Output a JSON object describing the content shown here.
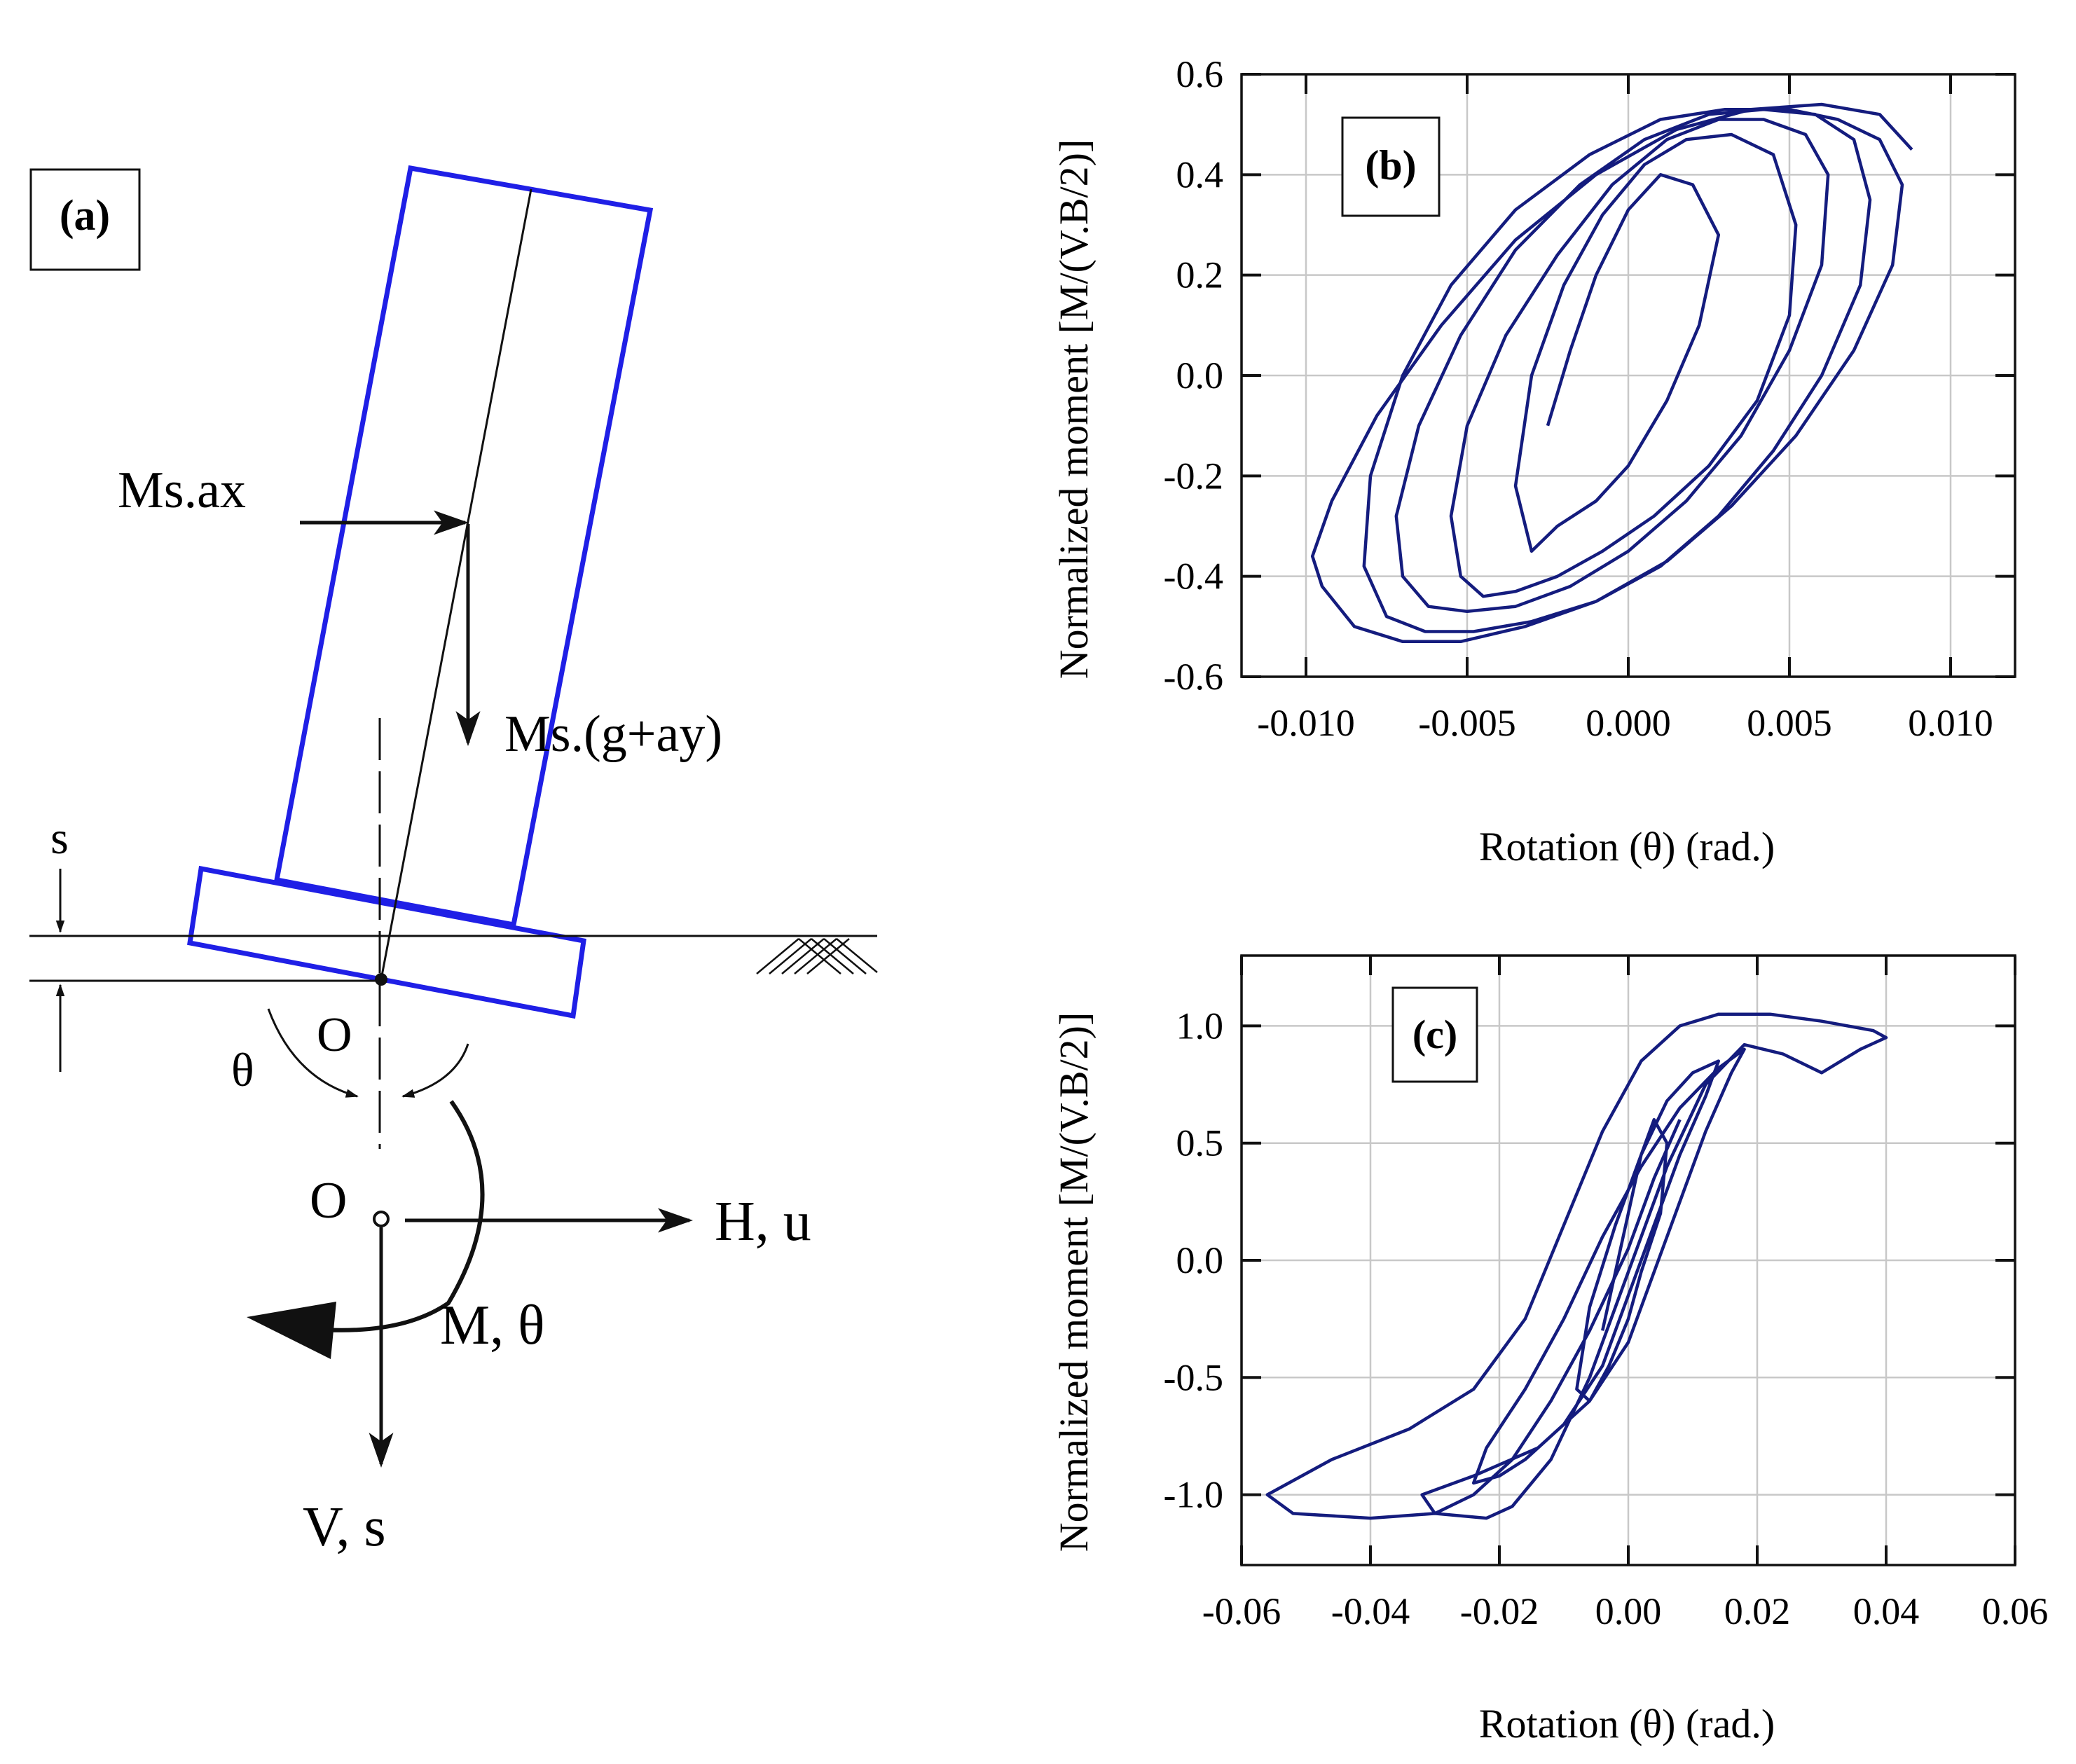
{
  "colors": {
    "blue_outline": "#1f1fe6",
    "curve": "#141c7e",
    "grid": "#c8c8c8",
    "ink": "#111111"
  },
  "panel_a": {
    "label": "(a)",
    "force_horizontal": "Ms.ax",
    "force_vertical": "Ms.(g+ay)",
    "settlement_label": "s",
    "rotation_label": "θ",
    "point_upper": "O",
    "point_lower": "O",
    "horizontal_load": "H, u",
    "moment_label": "M, θ",
    "vertical_load": "V, s"
  },
  "chart_data": [
    {
      "type": "line",
      "label": "(b)",
      "xlabel": "Rotation (θ) (rad.)",
      "ylabel": "Normalized moment [M/(V.B/2)]",
      "xlim": [
        -0.012,
        0.012
      ],
      "ylim": [
        -0.6,
        0.6
      ],
      "xticks": [
        -0.01,
        -0.005,
        0.0,
        0.005,
        0.01
      ],
      "xtick_labels": [
        "-0.010",
        "-0.005",
        "0.000",
        "0.005",
        "0.010"
      ],
      "yticks": [
        -0.6,
        -0.4,
        -0.2,
        0.0,
        0.2,
        0.4,
        0.6
      ],
      "ytick_labels": [
        "-0.6",
        "-0.4",
        "-0.2",
        "0.0",
        "0.2",
        "0.4",
        "0.6"
      ],
      "grid": true,
      "series": [
        {
          "name": "hysteresis",
          "x": [
            -0.0025,
            -0.0018,
            -0.001,
            0.0,
            0.001,
            0.002,
            0.0028,
            0.0022,
            0.0012,
            0.0,
            -0.001,
            -0.0022,
            -0.003,
            -0.0035,
            -0.003,
            -0.002,
            -0.0008,
            0.0005,
            0.0018,
            0.0032,
            0.0045,
            0.0052,
            0.005,
            0.004,
            0.0025,
            0.0008,
            -0.0008,
            -0.0022,
            -0.0035,
            -0.0045,
            -0.0052,
            -0.0055,
            -0.005,
            -0.0038,
            -0.0022,
            -0.0005,
            0.0012,
            0.0028,
            0.0042,
            0.0055,
            0.0062,
            0.006,
            0.005,
            0.0035,
            0.0018,
            0.0,
            -0.0018,
            -0.0035,
            -0.005,
            -0.0062,
            -0.007,
            -0.0072,
            -0.0065,
            -0.0052,
            -0.0035,
            -0.0015,
            0.0005,
            0.0025,
            0.0042,
            0.0058,
            0.007,
            0.0075,
            0.0072,
            0.006,
            0.0045,
            0.0028,
            0.001,
            -0.001,
            -0.003,
            -0.0048,
            -0.0063,
            -0.0075,
            -0.0082,
            -0.008,
            -0.007,
            -0.0055,
            -0.0035,
            -0.0012,
            0.001,
            0.003,
            0.005,
            0.0065,
            0.0078,
            0.0085,
            0.0082,
            0.007,
            0.0052,
            0.0032,
            0.0012,
            -0.001,
            -0.0032,
            -0.0052,
            -0.007,
            -0.0085,
            -0.0095,
            -0.0098,
            -0.0092,
            -0.0078,
            -0.0058,
            -0.0035,
            -0.001,
            0.0015,
            0.0038,
            0.006,
            0.0078,
            0.0088
          ],
          "y": [
            -0.1,
            0.05,
            0.2,
            0.33,
            0.4,
            0.38,
            0.28,
            0.1,
            -0.05,
            -0.18,
            -0.25,
            -0.3,
            -0.35,
            -0.22,
            0.0,
            0.18,
            0.32,
            0.42,
            0.47,
            0.48,
            0.44,
            0.3,
            0.12,
            -0.05,
            -0.18,
            -0.28,
            -0.35,
            -0.4,
            -0.43,
            -0.44,
            -0.4,
            -0.28,
            -0.1,
            0.08,
            0.24,
            0.38,
            0.47,
            0.51,
            0.51,
            0.48,
            0.4,
            0.22,
            0.05,
            -0.12,
            -0.25,
            -0.35,
            -0.42,
            -0.46,
            -0.47,
            -0.46,
            -0.4,
            -0.28,
            -0.1,
            0.08,
            0.25,
            0.38,
            0.47,
            0.52,
            0.53,
            0.52,
            0.47,
            0.35,
            0.18,
            0.0,
            -0.15,
            -0.28,
            -0.38,
            -0.45,
            -0.49,
            -0.51,
            -0.51,
            -0.48,
            -0.38,
            -0.2,
            0.0,
            0.18,
            0.33,
            0.44,
            0.51,
            0.53,
            0.53,
            0.51,
            0.47,
            0.38,
            0.22,
            0.05,
            -0.12,
            -0.26,
            -0.37,
            -0.45,
            -0.5,
            -0.53,
            -0.53,
            -0.5,
            -0.42,
            -0.36,
            -0.25,
            -0.08,
            0.1,
            0.27,
            0.4,
            0.49,
            0.53,
            0.54,
            0.52,
            0.45
          ]
        }
      ]
    },
    {
      "type": "line",
      "label": "(c)",
      "xlabel": "Rotation (θ) (rad.)",
      "ylabel": "Normalized moment [M/(V.B/2)]",
      "xlim": [
        -0.06,
        0.06
      ],
      "ylim": [
        -1.3,
        1.3
      ],
      "xticks": [
        -0.06,
        -0.04,
        -0.02,
        0.0,
        0.02,
        0.04,
        0.06
      ],
      "xtick_labels": [
        "-0.06",
        "-0.04",
        "-0.02",
        "0.00",
        "0.02",
        "0.04",
        "0.06"
      ],
      "yticks": [
        -1.0,
        -0.5,
        0.0,
        0.5,
        1.0
      ],
      "ytick_labels": [
        "-1.0",
        "-0.5",
        "0.0",
        "0.5",
        "1.0"
      ],
      "grid": true,
      "series": [
        {
          "name": "hysteresis",
          "x": [
            -0.004,
            -0.002,
            0.0,
            0.002,
            0.004,
            0.006,
            0.005,
            0.002,
            0.0,
            -0.003,
            -0.006,
            -0.008,
            -0.006,
            -0.002,
            0.002,
            0.006,
            0.01,
            0.014,
            0.012,
            0.008,
            0.004,
            0.0,
            -0.004,
            -0.01,
            -0.016,
            -0.02,
            -0.024,
            -0.022,
            -0.016,
            -0.01,
            -0.004,
            0.002,
            0.008,
            0.014,
            0.018,
            0.016,
            0.012,
            0.008,
            0.004,
            0.0,
            -0.006,
            -0.014,
            -0.024,
            -0.032,
            -0.03,
            -0.022,
            -0.018,
            -0.012,
            -0.006,
            0.0,
            0.006,
            0.012,
            0.018,
            0.024,
            0.03,
            0.036,
            0.04,
            0.038,
            0.03,
            0.022,
            0.014,
            0.008,
            0.002,
            -0.004,
            -0.01,
            -0.016,
            -0.024,
            -0.034,
            -0.046,
            -0.056,
            -0.052,
            -0.04,
            -0.03,
            -0.024,
            -0.018,
            -0.012,
            -0.006,
            0.0,
            0.004,
            0.008
          ],
          "y": [
            -0.3,
            -0.05,
            0.2,
            0.45,
            0.6,
            0.5,
            0.2,
            -0.05,
            -0.25,
            -0.45,
            -0.6,
            -0.55,
            -0.2,
            0.15,
            0.45,
            0.68,
            0.8,
            0.85,
            0.7,
            0.45,
            0.15,
            -0.15,
            -0.45,
            -0.7,
            -0.85,
            -0.92,
            -0.95,
            -0.8,
            -0.55,
            -0.25,
            0.1,
            0.4,
            0.65,
            0.82,
            0.9,
            0.8,
            0.55,
            0.25,
            -0.05,
            -0.35,
            -0.6,
            -0.8,
            -0.92,
            -1.0,
            -1.08,
            -1.1,
            -1.05,
            -0.85,
            -0.5,
            -0.05,
            0.4,
            0.75,
            0.92,
            0.88,
            0.8,
            0.9,
            0.95,
            0.98,
            1.02,
            1.05,
            1.05,
            1.0,
            0.85,
            0.55,
            0.15,
            -0.25,
            -0.55,
            -0.72,
            -0.85,
            -1.0,
            -1.08,
            -1.1,
            -1.08,
            -1.0,
            -0.85,
            -0.6,
            -0.3,
            0.05,
            0.35,
            0.6
          ]
        }
      ]
    }
  ]
}
